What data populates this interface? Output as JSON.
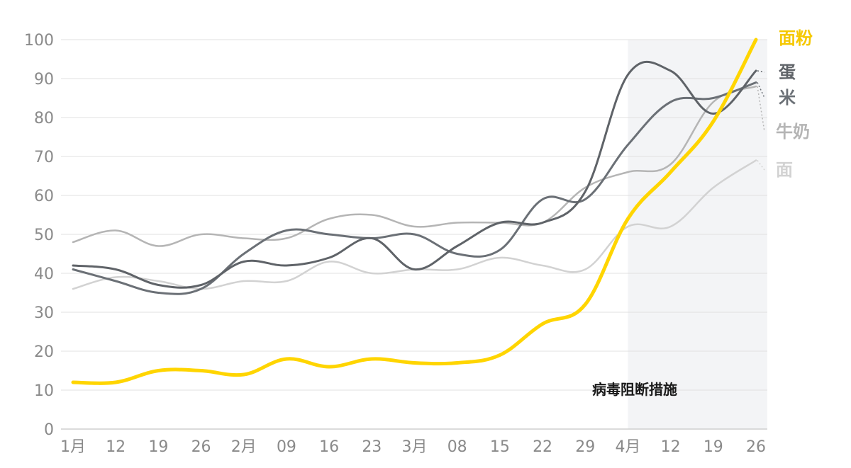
{
  "chart_data": {
    "type": "line",
    "title": "",
    "xlabel": "",
    "ylabel": "",
    "ylim": [
      0,
      100
    ],
    "yticks": [
      "0",
      "10",
      "20",
      "30",
      "40",
      "50",
      "60",
      "70",
      "80",
      "90",
      "100"
    ],
    "xtick_labels": [
      "1月",
      "12",
      "19",
      "26",
      "2月",
      "09",
      "16",
      "23",
      "3月",
      "08",
      "15",
      "22",
      "29",
      "4月",
      "12",
      "19",
      "26"
    ],
    "grid": "horizontal",
    "shaded_region": {
      "x_start_index": 13,
      "label": "病毒阻断措施"
    },
    "series": [
      {
        "name": "面粉",
        "color": "#FFD500",
        "values": [
          12,
          12,
          15,
          15,
          14,
          18,
          16,
          18,
          17,
          17,
          19,
          27,
          32,
          54,
          66,
          79,
          100
        ]
      },
      {
        "name": "蛋",
        "color": "#5f6368",
        "values": [
          42,
          41,
          37,
          37,
          43,
          42,
          44,
          49,
          41,
          47,
          53,
          53,
          61,
          91,
          92,
          81,
          92
        ]
      },
      {
        "name": "米",
        "color": "#6b7076",
        "values": [
          41,
          38,
          35,
          36,
          45,
          51,
          50,
          49,
          50,
          45,
          46,
          59,
          59,
          73,
          84,
          85,
          89
        ]
      },
      {
        "name": "牛奶",
        "color": "#b5b5b5",
        "values": [
          48,
          51,
          47,
          50,
          49,
          49,
          54,
          55,
          52,
          53,
          53,
          53,
          62,
          66,
          68,
          84,
          88
        ]
      },
      {
        "name": "面",
        "color": "#d2d2d2",
        "values": [
          36,
          39,
          38,
          36,
          38,
          38,
          43,
          40,
          41,
          41,
          44,
          42,
          41,
          52,
          52,
          62,
          69
        ]
      }
    ]
  }
}
